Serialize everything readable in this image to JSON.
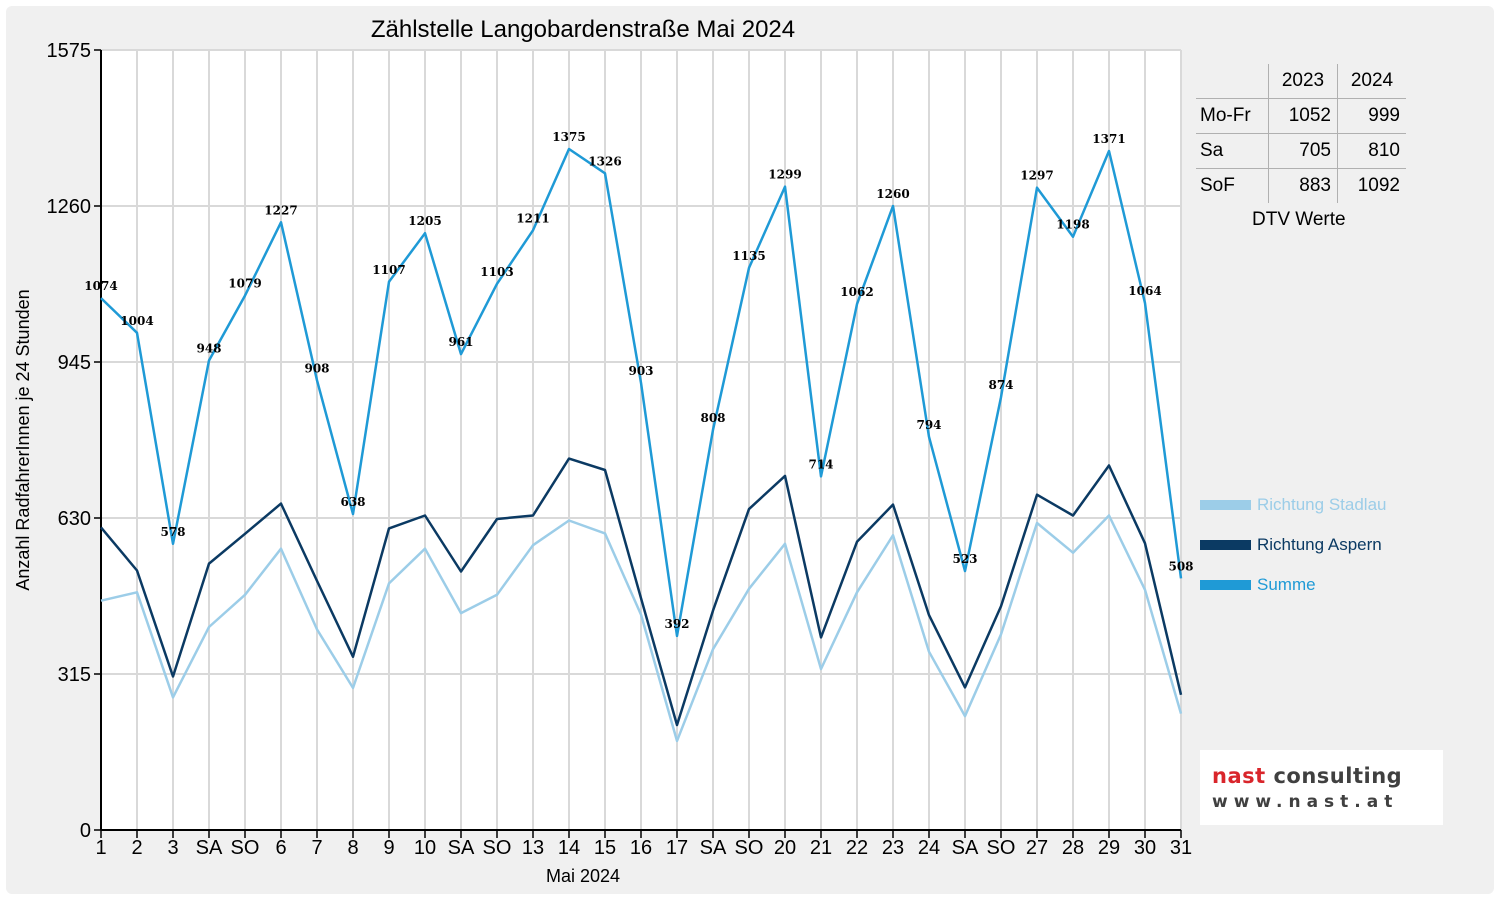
{
  "chart_data": {
    "type": "line",
    "title": "Zählstelle Langobardenstraße Mai 2024",
    "xlabel": "Mai 2024",
    "ylabel": "Anzahl RadfahrerInnen je 24 Stunden",
    "ylim": [
      0,
      1575
    ],
    "yticks": [
      "0",
      "315",
      "630",
      "945",
      "1260",
      "1575"
    ],
    "grid": true,
    "legend_position": "right",
    "categories": [
      "1",
      "2",
      "3",
      "SA",
      "SO",
      "6",
      "7",
      "8",
      "9",
      "10",
      "SA",
      "SO",
      "13",
      "14",
      "15",
      "16",
      "17",
      "SA",
      "SO",
      "20",
      "21",
      "22",
      "23",
      "24",
      "SA",
      "SO",
      "27",
      "28",
      "29",
      "30",
      "31"
    ],
    "category_colors": [
      "#ff0000",
      "#000000",
      "#000000",
      "#000000",
      "#ff0000",
      "#000000",
      "#000000",
      "#000000",
      "#ff0000",
      "#000000",
      "#000000",
      "#ff0000",
      "#000000",
      "#000000",
      "#000000",
      "#000000",
      "#000000",
      "#000000",
      "#ff0000",
      "#ff0000",
      "#000000",
      "#000000",
      "#000000",
      "#000000",
      "#000000",
      "#ff0000",
      "#000000",
      "#000000",
      "#000000",
      "#ff0000",
      "#000000"
    ],
    "series": [
      {
        "name": "Richtung Stadlau",
        "color": "#9ccde8",
        "values": [
          463,
          480,
          268,
          410,
          475,
          568,
          405,
          287,
          498,
          568,
          438,
          475,
          575,
          625,
          599,
          435,
          180,
          365,
          487,
          578,
          325,
          480,
          595,
          360,
          230,
          395,
          620,
          560,
          635,
          485,
          235
        ]
      },
      {
        "name": "Richtung Aspern",
        "color": "#0b3a63",
        "values": [
          611,
          524,
          310,
          538,
          598,
          659,
          503,
          350,
          609,
          635,
          522,
          628,
          635,
          750,
          727,
          468,
          212,
          443,
          648,
          715,
          389,
          582,
          657,
          434,
          288,
          452,
          677,
          635,
          736,
          579,
          273
        ]
      },
      {
        "name": "Summe",
        "color": "#1f9ad6",
        "values": [
          1074,
          1004,
          578,
          948,
          1079,
          1227,
          908,
          638,
          1107,
          1205,
          961,
          1103,
          1211,
          1375,
          1326,
          903,
          392,
          808,
          1135,
          1299,
          714,
          1062,
          1260,
          794,
          523,
          874,
          1297,
          1198,
          1371,
          1064,
          508
        ]
      }
    ],
    "data_labels": [
      "1074",
      "1004",
      "578",
      "948",
      "1079",
      "1227",
      "908",
      "638",
      "1107",
      "1205",
      "961",
      "1103",
      "1211",
      "1375",
      "1326",
      "903",
      "392",
      "808",
      "1135",
      "1299",
      "714",
      "1062",
      "1260",
      "794",
      "523",
      "874",
      "1297",
      "1198",
      "1371",
      "1064",
      "508"
    ]
  },
  "dtv_table": {
    "columns": [
      "2023",
      "2024"
    ],
    "rows": [
      {
        "label": "Mo-Fr",
        "v2023": "1052",
        "v2024": "999"
      },
      {
        "label": "Sa",
        "v2023": "705",
        "v2024": "810"
      },
      {
        "label": "SoF",
        "v2023": "883",
        "v2024": "1092"
      }
    ],
    "caption": "DTV Werte"
  },
  "logo": {
    "line1_a": "nast",
    "line1_b": " consulting",
    "line2": "www.nast.at"
  }
}
